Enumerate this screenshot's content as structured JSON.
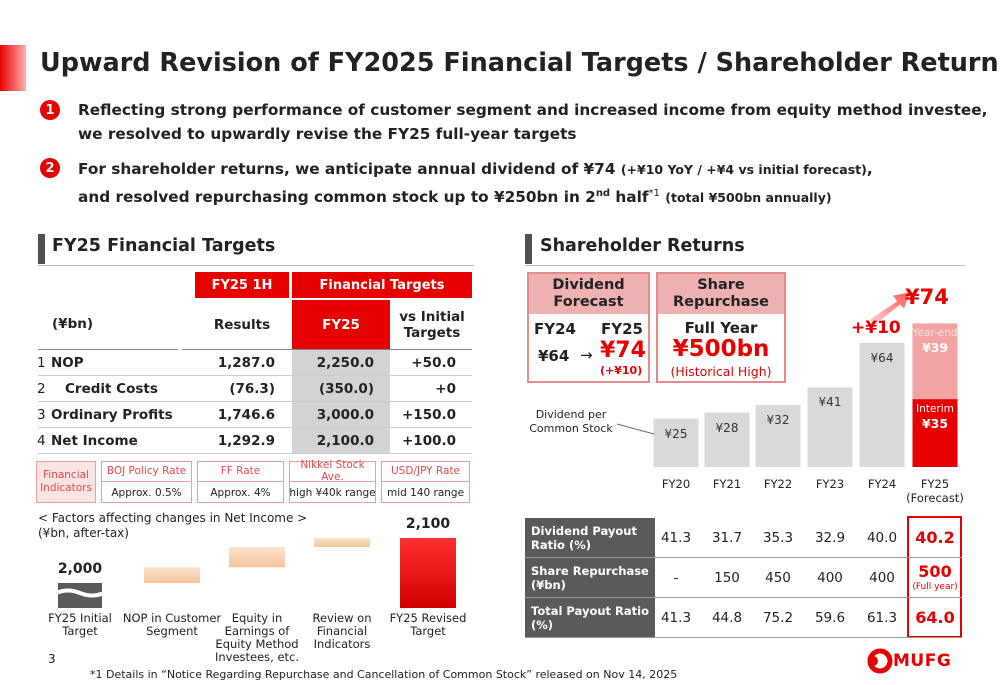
{
  "header": {
    "title": "Upward Revision of FY2025 Financial Targets / Shareholder Returns"
  },
  "bullets": [
    {
      "number": "1",
      "text": "Reflecting strong performance of customer segment and increased income from equity method investee, we resolved to upwardly revise the FY25 full-year targets"
    },
    {
      "number": "2",
      "parts": [
        "For shareholder returns, we anticipate annual dividend of ¥74",
        "(+¥10 YoY / +¥4 vs initial forecast)",
        ",",
        "and resolved repurchasing common stock up to ¥250bn in 2",
        "nd",
        "half",
        "*1",
        "(total ¥500bn annually)"
      ]
    }
  ],
  "financial_targets": {
    "heading": "FY25 Financial Targets",
    "header_row1": [
      "FY25 1H",
      "Financial Targets"
    ],
    "unit": "(¥bn)",
    "columns": [
      "Results",
      "FY25",
      "vs Initial Targets"
    ],
    "rows": [
      {
        "no": "1",
        "label": "NOP",
        "values": [
          "1,287.0",
          "2,250.0",
          "+50.0"
        ]
      },
      {
        "no": "2",
        "label": "Credit Costs",
        "values": [
          "(76.3)",
          "(350.0)",
          "+0"
        ]
      },
      {
        "no": "3",
        "label": "Ordinary Profits",
        "values": [
          "1,746.6",
          "3,000.0",
          "+150.0"
        ]
      },
      {
        "no": "4",
        "label": "Net Income",
        "values": [
          "1,292.9",
          "2,100.0",
          "+100.0"
        ]
      }
    ]
  },
  "indicators": {
    "label": "Financial Indicators",
    "items": [
      {
        "name": "BOJ Policy Rate",
        "value": "Approx. 0.5%"
      },
      {
        "name": "FF Rate",
        "value": "Approx. 4%"
      },
      {
        "name": "Nikkei Stock Ave.",
        "value": "high ¥40k range"
      },
      {
        "name": "USD/JPY Rate",
        "value": "mid 140 range"
      }
    ]
  },
  "waterfall": {
    "type": "waterfall",
    "title": "< Factors affecting changes in Net Income >",
    "unit": "(¥bn, after-tax)",
    "categories": [
      "FY25 Initial Target",
      "NOP in Customer Segment",
      "Equity in Earnings of Equity Method Investees, etc.",
      "Review on Financial Indicators",
      "FY25 Revised Target"
    ],
    "values": [
      2000,
      35,
      45,
      20,
      2100
    ],
    "value_labels": [
      "2,000",
      null,
      null,
      null,
      "2,100"
    ]
  },
  "shareholder_returns": {
    "heading": "Shareholder Returns",
    "dividend_forecast": {
      "title": "Dividend Forecast",
      "from_label": "FY24",
      "to_label": "FY25",
      "from_value": "¥64",
      "arrow": "→",
      "to_value": "¥74",
      "change": "(+¥10)"
    },
    "share_repurchase": {
      "title": "Share Repurchase",
      "period": "Full Year",
      "amount": "¥500bn",
      "note": "(Historical High)"
    },
    "dividend_chart": {
      "type": "bar",
      "stacked": true,
      "annotation": "Dividend per Common Stock",
      "categories": [
        "FY20",
        "FY21",
        "FY22",
        "FY23",
        "FY24",
        "FY25 (Forecast)"
      ],
      "series": [
        {
          "color": "#d9d9d9",
          "values": [
            25,
            28,
            32,
            41,
            64,
            null
          ],
          "value_labels": [
            "¥25",
            "¥28",
            "¥32",
            "¥41",
            "¥64",
            null
          ]
        },
        {
          "name": "Interim",
          "color": "#e60000",
          "values": [
            null,
            null,
            null,
            null,
            null,
            35
          ],
          "value_labels": [
            null,
            null,
            null,
            null,
            null,
            "¥35"
          ]
        },
        {
          "name": "Year-end",
          "color": "#f2a3a3",
          "values": [
            null,
            null,
            null,
            null,
            null,
            39
          ],
          "value_labels": [
            null,
            null,
            null,
            null,
            null,
            "¥39"
          ]
        }
      ],
      "total_label": "¥74",
      "change_label": "+¥10"
    },
    "payout_table": {
      "rows": [
        {
          "label": "Dividend Payout Ratio (%)",
          "values": [
            "41.3",
            "31.7",
            "35.3",
            "32.9",
            "40.0",
            "40.2"
          ]
        },
        {
          "label": "Share Repurchase (¥bn)",
          "values": [
            "-",
            "150",
            "450",
            "400",
            "400",
            "500"
          ],
          "note": "(Full year)"
        },
        {
          "label": "Total Payout Ratio (%)",
          "values": [
            "41.3",
            "44.8",
            "75.2",
            "59.6",
            "61.3",
            "64.0"
          ]
        }
      ]
    }
  },
  "footer": {
    "page": "3",
    "footnote": "*1 Details in “Notice Regarding Repurchase and Cancellation of Common Stock” released on Nov 14, 2025",
    "logo": "MUFG"
  }
}
